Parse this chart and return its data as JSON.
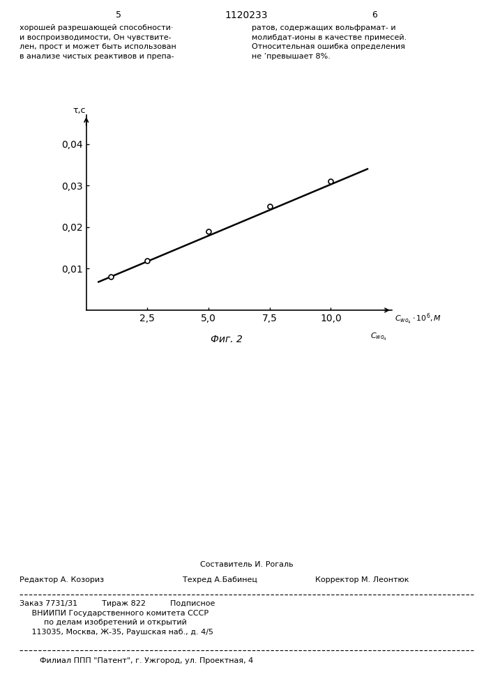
{
  "ylabel": "τ,c",
  "caption": "Фиг. 2",
  "x_data": [
    1.0,
    2.5,
    5.0,
    7.5,
    10.0
  ],
  "y_data": [
    0.008,
    0.012,
    0.019,
    0.025,
    0.031
  ],
  "line_x": [
    0.5,
    11.5
  ],
  "line_y": [
    0.0068,
    0.034
  ],
  "x_ticks": [
    2.5,
    5.0,
    7.5,
    10.0
  ],
  "x_tick_labels": [
    "2,5",
    "5,0",
    "7,5",
    "10,0"
  ],
  "y_ticks": [
    0.01,
    0.02,
    0.03,
    0.04
  ],
  "y_tick_labels": [
    "0,01",
    "0,02",
    "0,03",
    "0,04"
  ],
  "xlim": [
    0,
    12.5
  ],
  "ylim": [
    0,
    0.047
  ],
  "line_color": "#000000",
  "marker_color": "#ffffff",
  "marker_edge_color": "#000000",
  "background_color": "#ffffff",
  "axes_color": "#000000",
  "font_size_ticks": 9,
  "font_size_label": 9,
  "font_size_caption": 10,
  "font_size_body": 8,
  "header_left": "хорошей разрешающей способности·\nи воспроизводимости, Он чувствите-\nлен, прост и может быть использован\nв анализе чистых реактивов и препа-",
  "header_right": "ратов, содержащих вольфрамат- и\nмолибдат-ионы в качестве примесей.\nОтносительная ошибка определения\nне ’превышает 8%.",
  "page_num_left": "5",
  "patent_num": "1120233",
  "page_num_right": "6",
  "editor_line": "Составитель И. Рогаль",
  "editor_left": "Редактор А. Козориз",
  "editor_mid": "Техред А.Бабинец",
  "editor_right": "Корректор М. Леонтюк",
  "order_text": "Заказ 7731/31          Тираж 822          Подписное\n     ВНИИПИ Государственного комитета СССР\n          по делам изобретений и открытий\n     113035, Москва, Ж-35, Раушская наб., д. 4/5",
  "filial_text": "Филиал ППП \"Патент\", г. Ужгород, ул. Проектная, 4"
}
